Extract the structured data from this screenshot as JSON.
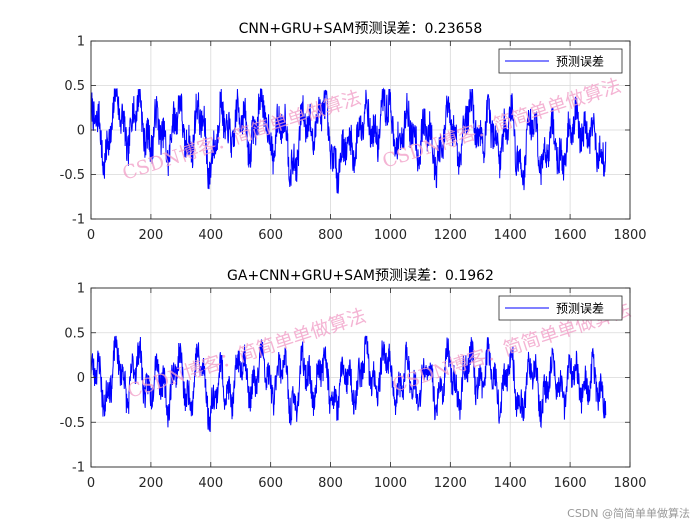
{
  "chart_data": [
    {
      "type": "line",
      "title": "CNN+GRU+SAM预测误差：0.23658",
      "legend": [
        "预测误差"
      ],
      "legend_position": "top-right",
      "grid": true,
      "xlim": [
        0,
        1800
      ],
      "ylim": [
        -1,
        1
      ],
      "xticks": [
        0,
        200,
        400,
        600,
        800,
        1000,
        1200,
        1400,
        1600,
        1800
      ],
      "yticks": [
        1,
        0.5,
        0,
        -0.5,
        -1
      ],
      "series": [
        {
          "name": "预测误差",
          "color": "#0000ff",
          "n_points": 1720,
          "x": [
            0,
            40,
            80,
            120,
            160,
            200,
            240,
            280,
            320,
            360,
            400,
            440,
            480,
            520,
            560,
            600,
            640,
            680,
            720,
            760,
            800,
            840,
            880,
            920,
            960,
            1000,
            1040,
            1080,
            1120,
            1160,
            1200,
            1240,
            1280,
            1320,
            1360,
            1400,
            1440,
            1480,
            1520,
            1560,
            1600,
            1640,
            1680,
            1720
          ],
          "y": [
            0.1,
            -0.2,
            0.2,
            0.05,
            0.15,
            0.0,
            -0.15,
            0.1,
            -0.05,
            0.05,
            -0.25,
            0.05,
            0.1,
            -0.05,
            0.15,
            0.0,
            -0.05,
            -0.3,
            0.05,
            0.2,
            -0.1,
            -0.45,
            0.0,
            0.05,
            0.1,
            0.15,
            -0.1,
            0.05,
            -0.15,
            -0.2,
            0.0,
            -0.05,
            0.2,
            -0.1,
            -0.05,
            0.0,
            -0.3,
            0.0,
            -0.25,
            -0.2,
            -0.15,
            0.2,
            -0.3,
            -0.05
          ]
        }
      ],
      "watermarks": [
        "CSDN博客：简简单单做算法",
        "CSDN博客：简简单单做算法"
      ]
    },
    {
      "type": "line",
      "title": "GA+CNN+GRU+SAM预测误差：0.1962",
      "legend": [
        "预测误差"
      ],
      "legend_position": "top-right",
      "grid": true,
      "xlim": [
        0,
        1800
      ],
      "ylim": [
        -1,
        1
      ],
      "xticks": [
        0,
        200,
        400,
        600,
        800,
        1000,
        1200,
        1400,
        1600,
        1800
      ],
      "yticks": [
        1,
        0.5,
        0,
        -0.5,
        -1
      ],
      "series": [
        {
          "name": "预测误差",
          "color": "#0000ff",
          "n_points": 1720,
          "x": [
            0,
            40,
            80,
            120,
            160,
            200,
            240,
            280,
            320,
            360,
            400,
            440,
            480,
            520,
            560,
            600,
            640,
            680,
            720,
            760,
            800,
            840,
            880,
            920,
            960,
            1000,
            1040,
            1080,
            1120,
            1160,
            1200,
            1240,
            1280,
            1320,
            1360,
            1400,
            1440,
            1480,
            1520,
            1560,
            1600,
            1640,
            1680,
            1720
          ],
          "y": [
            0.0,
            -0.1,
            0.1,
            0.0,
            0.05,
            0.0,
            -0.15,
            0.05,
            -0.1,
            0.05,
            -0.2,
            -0.15,
            0.0,
            0.05,
            0.0,
            0.05,
            0.0,
            -0.2,
            0.0,
            0.05,
            -0.1,
            -0.15,
            0.0,
            0.05,
            0.1,
            0.05,
            -0.1,
            0.0,
            -0.1,
            -0.05,
            0.0,
            -0.05,
            0.1,
            0.05,
            -0.05,
            0.0,
            -0.2,
            0.0,
            -0.15,
            0.0,
            -0.1,
            0.05,
            -0.2,
            0.0
          ]
        }
      ],
      "watermarks": [
        "CSDN博客：简简单单做算法",
        "CSDN博客：简简单单做算法"
      ]
    }
  ],
  "footer_watermark": "CSDN @简简单单做算法"
}
